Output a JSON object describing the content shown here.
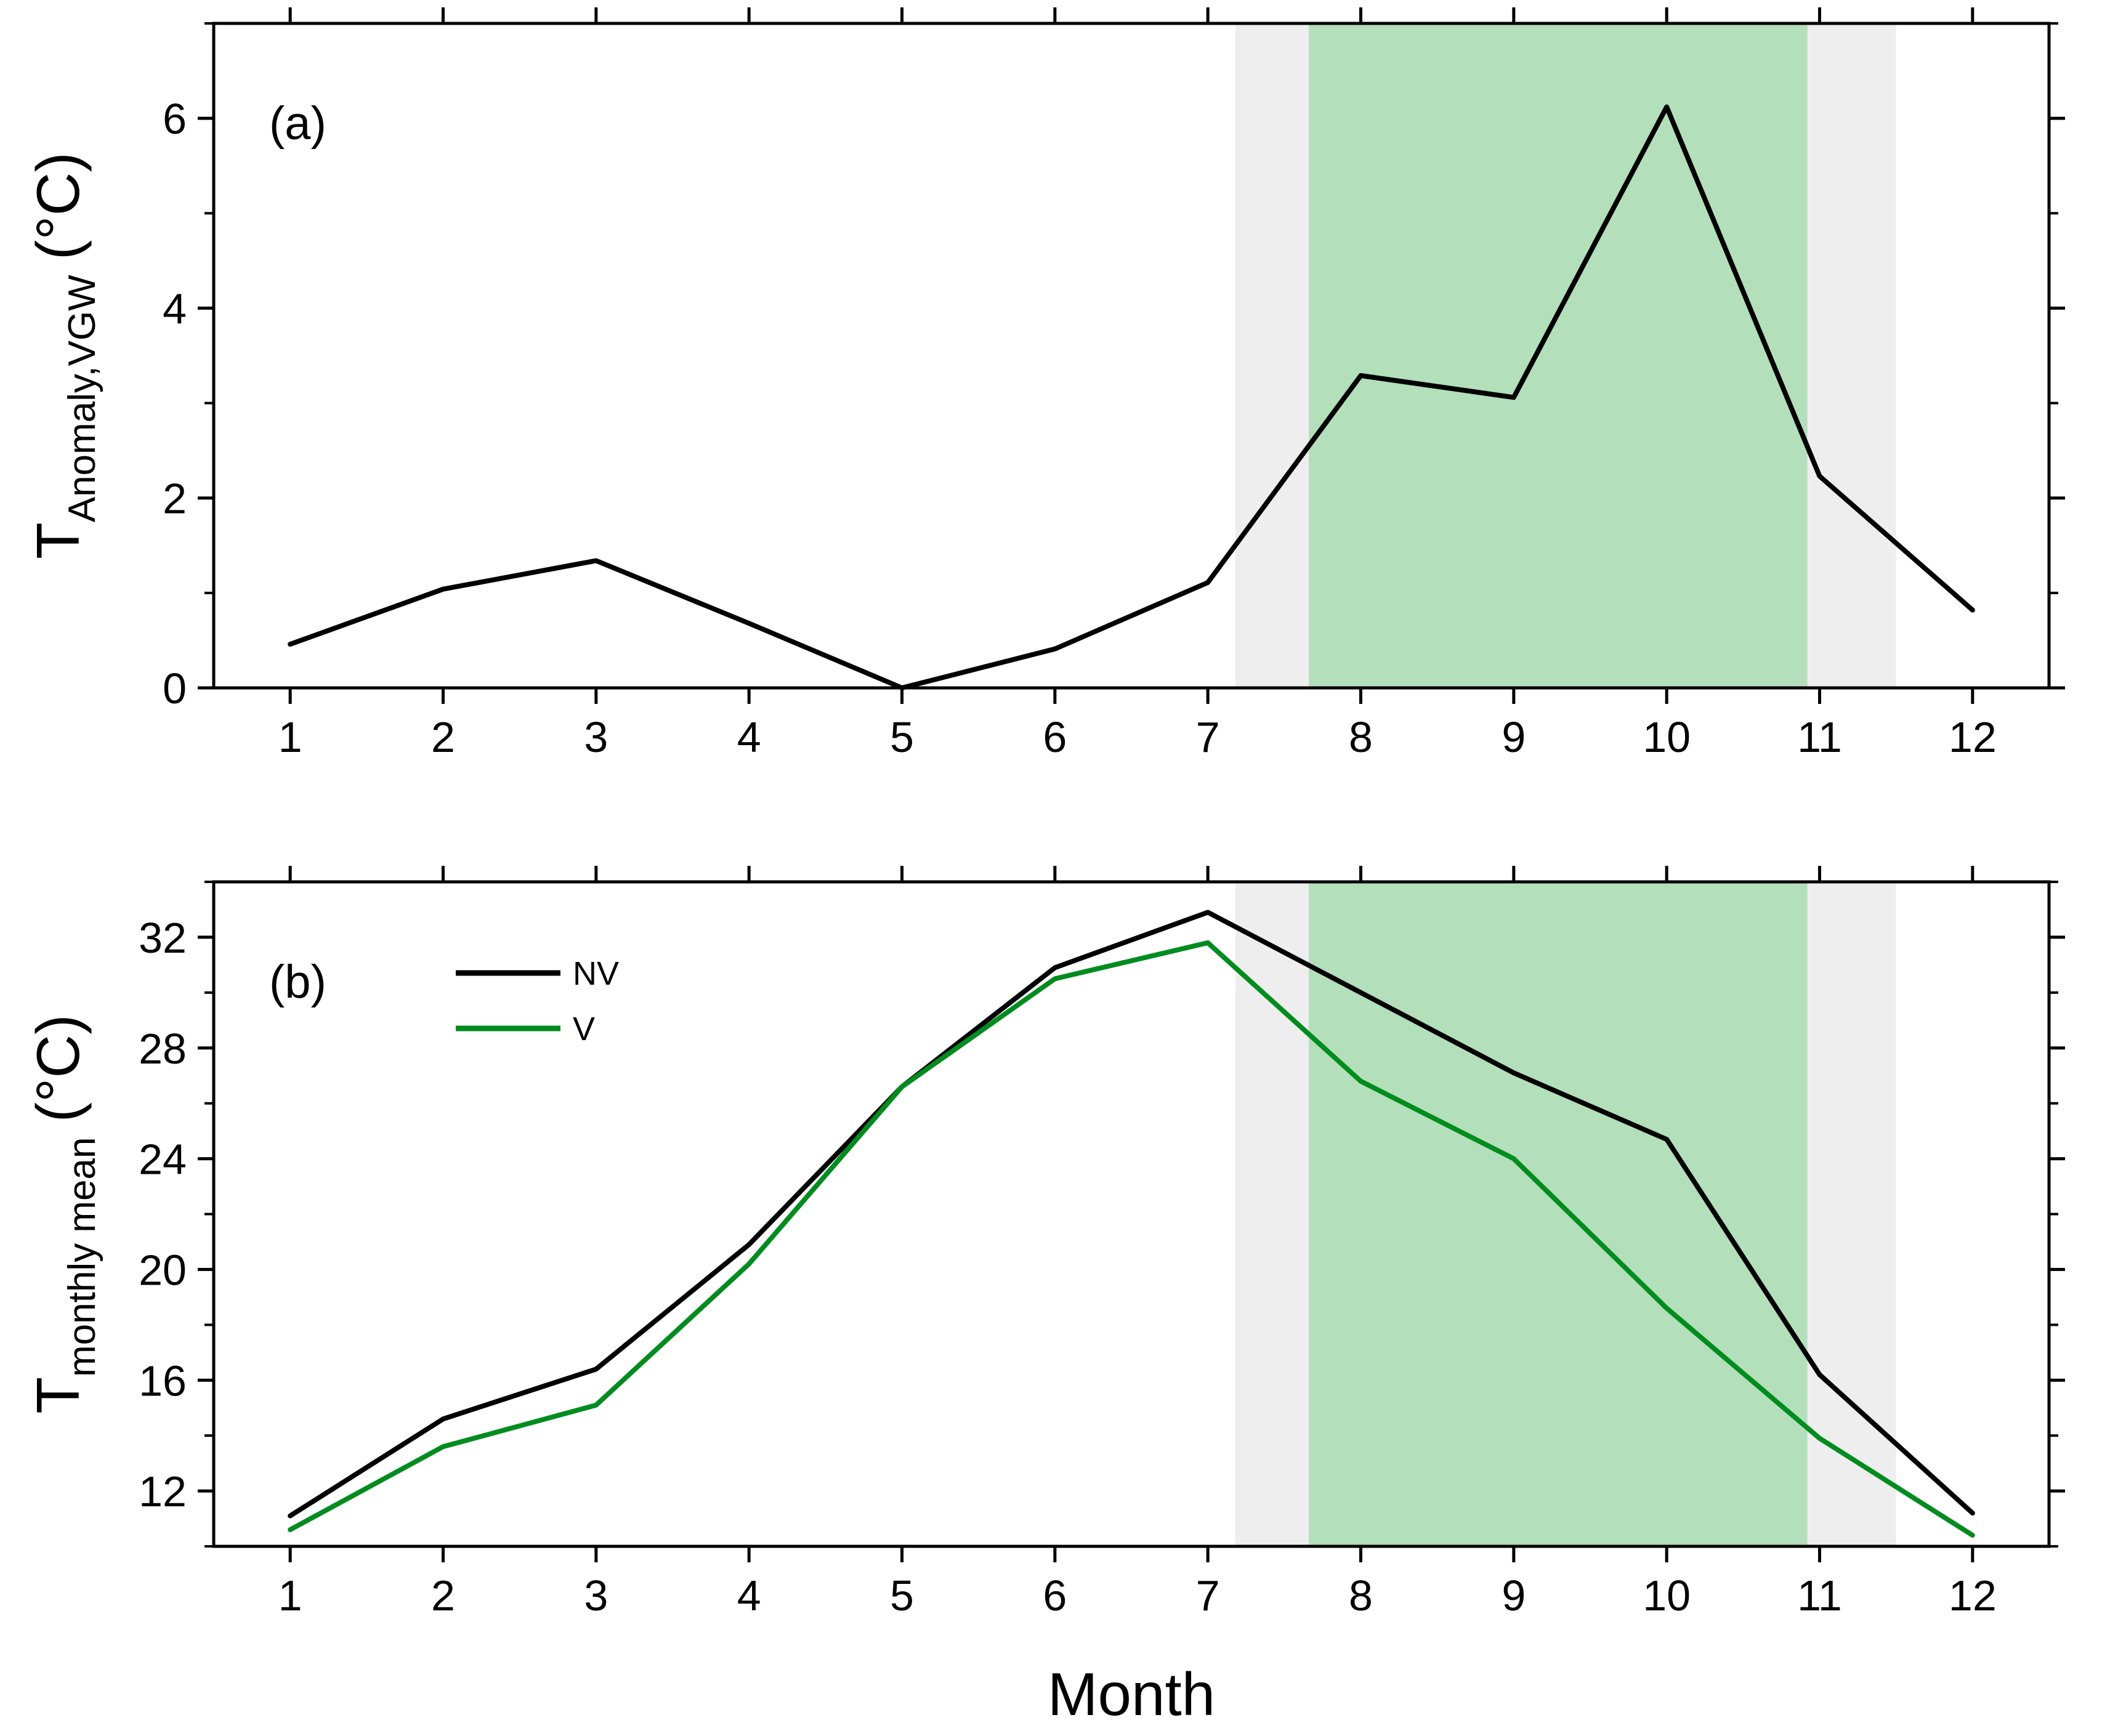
{
  "colors": {
    "nv_line": "#000000",
    "v_line": "#008c1e",
    "shade_gray": "#eeeeee",
    "shade_green": "#b3dfbb",
    "axis": "#000000",
    "background": "#ffffff"
  },
  "chart_data": [
    {
      "type": "line",
      "panel_label": "(a)",
      "title": "",
      "xlabel": "",
      "ylabel_main": "T",
      "ylabel_sub": "Anomaly,VGW",
      "ylabel_unit": "(°C)",
      "x": [
        1,
        2,
        3,
        4,
        5,
        6,
        7,
        8,
        9,
        10,
        11,
        12
      ],
      "x_ticks": [
        "1",
        "2",
        "3",
        "4",
        "5",
        "6",
        "7",
        "8",
        "9",
        "10",
        "11",
        "12"
      ],
      "xlim": [
        0.5,
        12.5
      ],
      "ylim": [
        0,
        7
      ],
      "y_ticks": [
        0,
        2,
        4,
        6
      ],
      "y_minor_ticks": [
        1,
        3,
        5,
        7
      ],
      "shaded_regions": [
        {
          "from": 7.18,
          "to": 11.5,
          "color": "gray"
        },
        {
          "from": 7.66,
          "to": 10.92,
          "color": "green"
        }
      ],
      "series": [
        {
          "name": "T anomaly",
          "color": "black",
          "values": [
            0.46,
            1.04,
            1.34,
            0.68,
            0.0,
            0.41,
            1.11,
            3.29,
            3.06,
            6.12,
            2.23,
            0.82
          ]
        }
      ]
    },
    {
      "type": "line",
      "panel_label": "(b)",
      "title": "",
      "xlabel": "Month",
      "ylabel_main": "T",
      "ylabel_sub": "monthly mean",
      "ylabel_unit": "(°C)",
      "x": [
        1,
        2,
        3,
        4,
        5,
        6,
        7,
        8,
        9,
        10,
        11,
        12
      ],
      "x_ticks": [
        "1",
        "2",
        "3",
        "4",
        "5",
        "6",
        "7",
        "8",
        "9",
        "10",
        "11",
        "12"
      ],
      "xlim": [
        0.5,
        12.5
      ],
      "ylim": [
        10,
        34
      ],
      "y_ticks": [
        12,
        16,
        20,
        24,
        28,
        32
      ],
      "y_minor_ticks": [
        10,
        14,
        18,
        22,
        26,
        30,
        34
      ],
      "shaded_regions": [
        {
          "from": 7.18,
          "to": 11.5,
          "color": "gray"
        },
        {
          "from": 7.66,
          "to": 10.92,
          "color": "green"
        }
      ],
      "legend": {
        "position": "top-left",
        "entries": [
          "NV",
          "V"
        ]
      },
      "series": [
        {
          "name": "NV",
          "color": "black",
          "values": [
            11.1,
            14.6,
            16.4,
            20.9,
            26.6,
            30.9,
            32.9,
            30.0,
            27.1,
            24.7,
            16.2,
            11.2
          ]
        },
        {
          "name": "V",
          "color": "green",
          "values": [
            10.6,
            13.6,
            15.1,
            20.2,
            26.6,
            30.5,
            31.8,
            26.8,
            24.0,
            18.6,
            13.9,
            10.4
          ]
        }
      ]
    }
  ]
}
